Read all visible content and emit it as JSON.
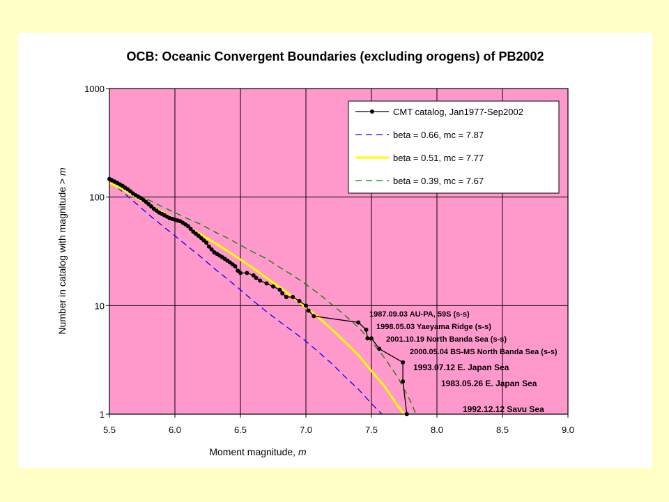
{
  "chart_data": {
    "type": "line",
    "title": "OCB: Oceanic Convergent Boundaries (excluding orogens) of PB2002",
    "xlabel": "Moment magnitude, ",
    "xlabel_var": "m",
    "ylabel": "Number in catalog with magnitude  >  ",
    "ylabel_var": "m",
    "xlim": [
      5.5,
      9.0
    ],
    "ylim": [
      1,
      1000
    ],
    "yscale": "log",
    "x_ticks": [
      "5.5",
      "6.0",
      "6.5",
      "7.0",
      "7.5",
      "8.0",
      "8.5",
      "9.0"
    ],
    "y_ticks": [
      "1",
      "10",
      "100",
      "1000"
    ],
    "grid": true,
    "plot_background": "#ff99cc",
    "legend_position": "top-right",
    "series": [
      {
        "name": "CMT catalog, Jan1977-Sep2002",
        "style": "line-markers",
        "color": "#000000",
        "x": [
          5.5,
          5.52,
          5.54,
          5.56,
          5.58,
          5.6,
          5.62,
          5.64,
          5.66,
          5.68,
          5.7,
          5.72,
          5.74,
          5.76,
          5.78,
          5.8,
          5.82,
          5.84,
          5.86,
          5.88,
          5.9,
          5.92,
          5.94,
          5.96,
          5.98,
          6.0,
          6.02,
          6.04,
          6.06,
          6.08,
          6.1,
          6.12,
          6.14,
          6.16,
          6.18,
          6.2,
          6.22,
          6.24,
          6.26,
          6.28,
          6.3,
          6.32,
          6.34,
          6.36,
          6.38,
          6.4,
          6.42,
          6.44,
          6.46,
          6.48,
          6.5,
          6.55,
          6.6,
          6.62,
          6.65,
          6.7,
          6.75,
          6.8,
          6.82,
          6.85,
          6.9,
          6.95,
          7.0,
          7.02,
          7.06,
          7.4,
          7.46,
          7.47,
          7.5,
          7.56,
          7.74,
          7.74,
          7.77
        ],
        "y": [
          147,
          143,
          139,
          135,
          131,
          127,
          122,
          118,
          113,
          108,
          104,
          101,
          98,
          94,
          90,
          86,
          82,
          78,
          75,
          72,
          70,
          68,
          66,
          64,
          63,
          62,
          61,
          60,
          58,
          56,
          54,
          51,
          48,
          46,
          44,
          42,
          40,
          38,
          35,
          33,
          31,
          30,
          29,
          28,
          27,
          26,
          25,
          24,
          23,
          21,
          20,
          20,
          19,
          18,
          17,
          16,
          15,
          14,
          13,
          12,
          12,
          11,
          10,
          9,
          8,
          7,
          6,
          5,
          5,
          4,
          3,
          2,
          1
        ]
      },
      {
        "name": "beta = 0.66, mc = 7.87",
        "style": "dashed",
        "color": "#0000ff",
        "x": [
          5.5,
          5.6,
          5.7,
          5.8,
          5.9,
          6.0,
          6.1,
          6.2,
          6.3,
          6.4,
          6.5,
          6.6,
          6.7,
          6.8,
          6.9,
          7.0,
          7.1,
          7.2,
          7.3,
          7.4,
          7.5,
          7.58
        ],
        "y": [
          142,
          112,
          88,
          69,
          55,
          44,
          35,
          28,
          22,
          17.6,
          14,
          11,
          8.8,
          7.1,
          5.8,
          4.7,
          3.7,
          2.9,
          2.2,
          1.7,
          1.25,
          1.0
        ]
      },
      {
        "name": "beta = 0.51, mc = 7.77",
        "style": "solid",
        "color": "#ffff00",
        "x": [
          5.5,
          5.6,
          5.7,
          5.8,
          5.9,
          6.0,
          6.1,
          6.2,
          6.3,
          6.4,
          6.5,
          6.6,
          6.7,
          6.8,
          6.9,
          7.0,
          7.1,
          7.2,
          7.3,
          7.4,
          7.5,
          7.6,
          7.7,
          7.75
        ],
        "y": [
          136,
          118,
          100,
          86,
          73,
          62,
          53,
          45,
          38,
          32,
          26.5,
          22,
          18,
          14.8,
          12,
          9.6,
          7.7,
          6,
          4.6,
          3.5,
          2.5,
          1.8,
          1.2,
          1.0
        ]
      },
      {
        "name": "beta = 0.39, mc = 7.67",
        "style": "dashed",
        "color": "#008000",
        "x": [
          5.5,
          5.6,
          5.7,
          5.8,
          5.9,
          6.0,
          6.1,
          6.2,
          6.3,
          6.4,
          6.5,
          6.6,
          6.7,
          6.8,
          6.9,
          7.0,
          7.1,
          7.2,
          7.3,
          7.4,
          7.5,
          7.6,
          7.7,
          7.8,
          7.84
        ],
        "y": [
          138,
          122,
          106,
          94,
          82,
          72,
          63,
          56,
          48,
          42,
          36,
          31,
          27,
          22.5,
          19,
          15.7,
          12.8,
          10.2,
          8.1,
          6.3,
          4.7,
          3.3,
          2.2,
          1.3,
          1.0
        ]
      }
    ],
    "annotations": [
      {
        "text": "1987.09.03 AU-PA, 59S (s-s)",
        "x": 7.4,
        "y": 7
      },
      {
        "text": "1998.05.03 Yaeyama Ridge (s-s)",
        "x": 7.46,
        "y": 6
      },
      {
        "text": "2001.10.19 North Banda Sea (s-s)",
        "x": 7.5,
        "y": 5
      },
      {
        "text": "2000.05.04 BS-MS North Banda Sea (s-s)",
        "x": 7.56,
        "y": 4
      },
      {
        "text": "1993.07.12 E. Japan Sea",
        "x": 7.74,
        "y": 3
      },
      {
        "text": "1983.05.26 E. Japan Sea",
        "x": 7.74,
        "y": 2
      },
      {
        "text": "1992.12.12 Savu Sea",
        "x": 7.77,
        "y": 1
      }
    ]
  }
}
